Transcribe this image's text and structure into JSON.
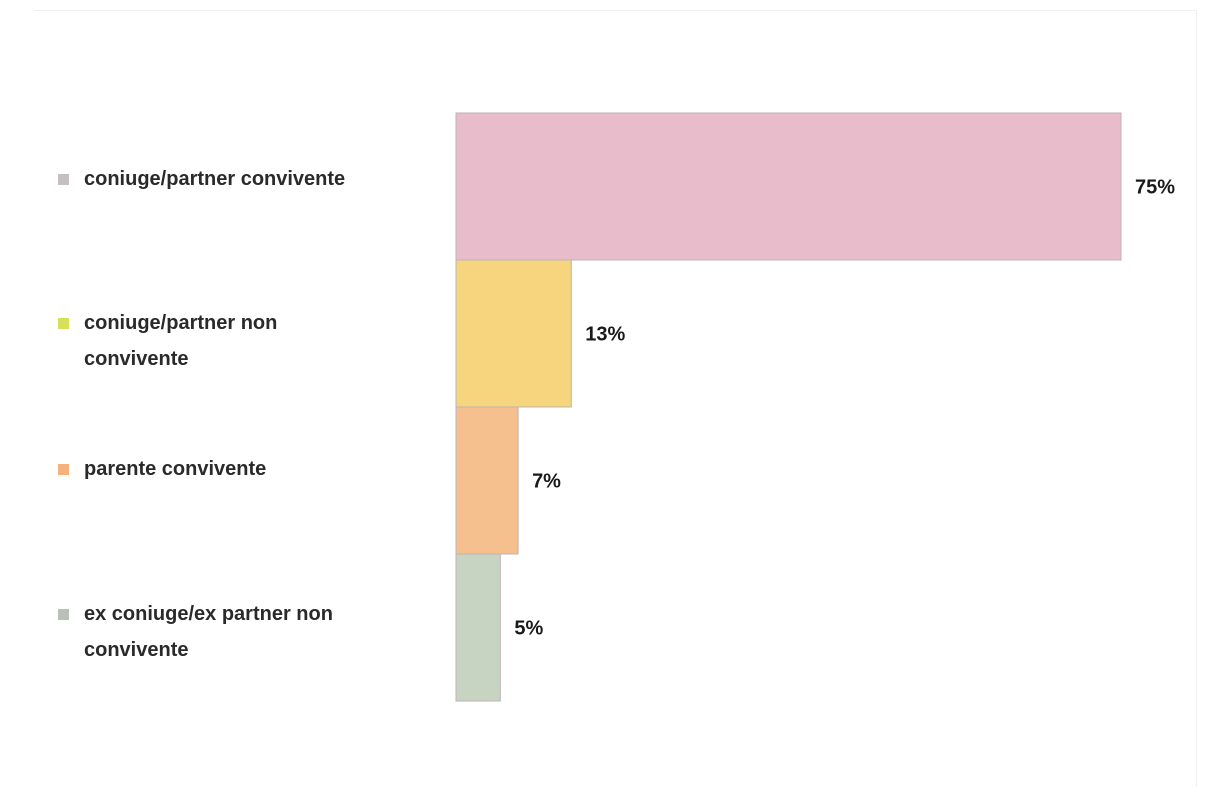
{
  "chart_data": {
    "type": "bar",
    "orientation": "horizontal",
    "unit": "%",
    "categories": [
      "coniuge/partner convivente",
      "coniuge/partner non convivente",
      "parente convivente",
      "ex coniuge/ex partner non convivente"
    ],
    "legend_lines": [
      [
        "coniuge/partner convivente"
      ],
      [
        "coniuge/partner non",
        "convivente"
      ],
      [
        "parente convivente"
      ],
      [
        "ex coniuge/ex partner non",
        "convivente"
      ]
    ],
    "values": [
      75,
      13,
      7,
      5
    ],
    "data_labels": [
      "75%",
      "13%",
      "7%",
      "5%"
    ],
    "colors": [
      "#e8bccb",
      "#f6d57e",
      "#f6c08e",
      "#c7d4c2"
    ],
    "swatch_colors": [
      "#c4c0c2",
      "#d7e05a",
      "#f6b27a",
      "#b9c0b7"
    ],
    "xlim": [
      0,
      75
    ],
    "grid": false,
    "legend_position": "left"
  }
}
